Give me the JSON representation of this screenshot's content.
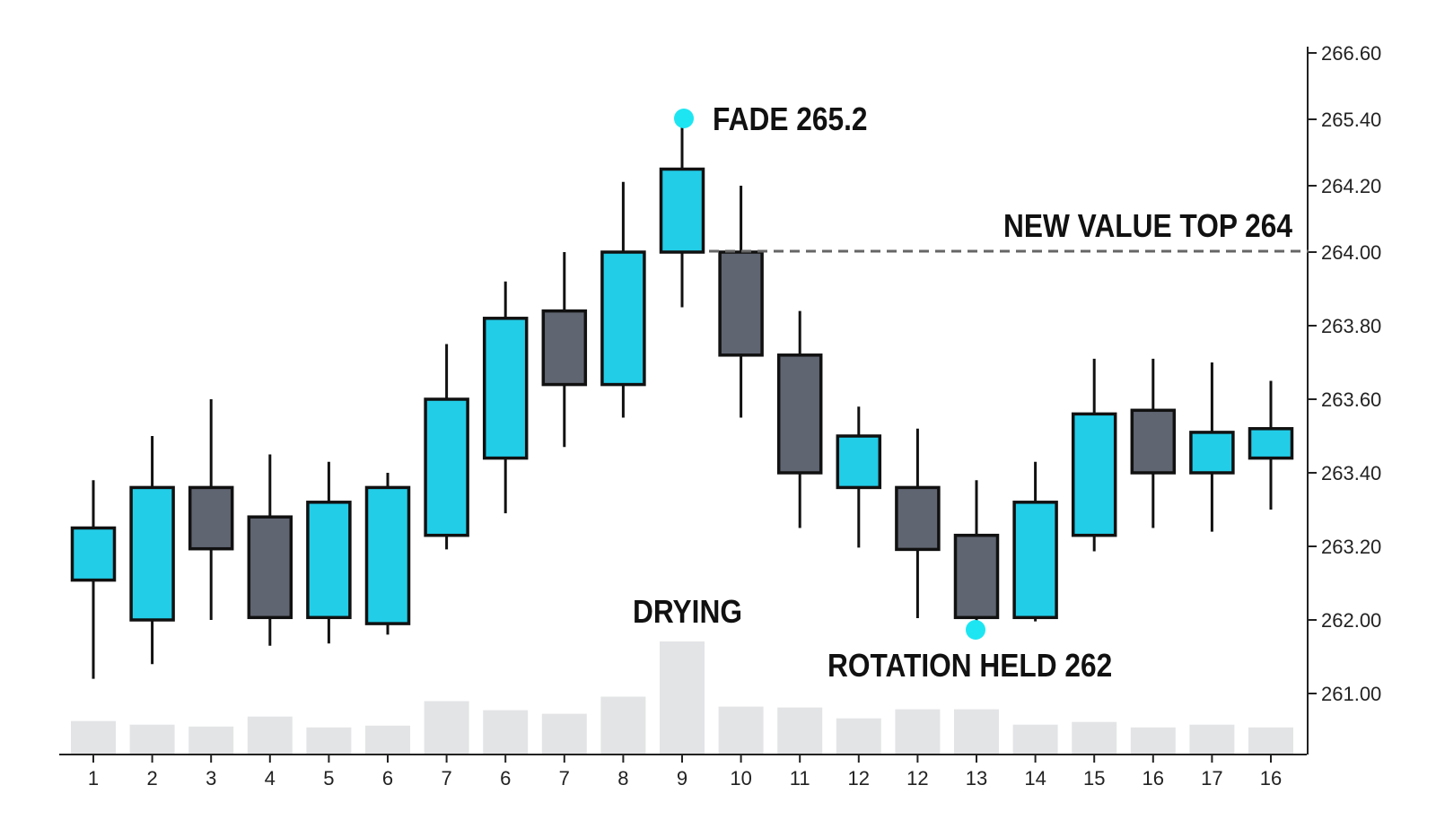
{
  "chart_data": {
    "type": "candlestick",
    "categories": [
      "1",
      "2",
      "3",
      "4",
      "5",
      "6",
      "7",
      "6",
      "7",
      "8",
      "9",
      "10",
      "11",
      "12",
      "12",
      "13",
      "14",
      "15",
      "16",
      "17",
      "16"
    ],
    "candles": [
      {
        "open": 262.65,
        "high": 263.38,
        "low": 261.2,
        "close": 263.25
      },
      {
        "open": 262.0,
        "high": 263.5,
        "low": 261.4,
        "close": 263.36
      },
      {
        "open": 263.36,
        "high": 263.6,
        "low": 262.0,
        "close": 263.16
      },
      {
        "open": 263.28,
        "high": 263.45,
        "low": 261.65,
        "close": 262.04
      },
      {
        "open": 262.04,
        "high": 263.43,
        "low": 261.68,
        "close": 263.32
      },
      {
        "open": 261.95,
        "high": 263.4,
        "low": 261.8,
        "close": 263.36
      },
      {
        "open": 263.23,
        "high": 263.75,
        "low": 263.15,
        "close": 263.6
      },
      {
        "open": 263.44,
        "high": 263.92,
        "low": 263.29,
        "close": 263.82
      },
      {
        "open": 263.84,
        "high": 264.0,
        "low": 263.47,
        "close": 263.64
      },
      {
        "open": 263.64,
        "high": 264.27,
        "low": 263.55,
        "close": 264.0
      },
      {
        "open": 264.0,
        "high": 265.45,
        "low": 263.85,
        "close": 264.5
      },
      {
        "open": 264.0,
        "high": 264.2,
        "low": 263.55,
        "close": 263.72
      },
      {
        "open": 263.72,
        "high": 263.84,
        "low": 263.25,
        "close": 263.4
      },
      {
        "open": 263.36,
        "high": 263.58,
        "low": 263.18,
        "close": 263.5
      },
      {
        "open": 263.36,
        "high": 263.52,
        "low": 262.03,
        "close": 263.15
      },
      {
        "open": 263.23,
        "high": 263.38,
        "low": 261.98,
        "close": 262.04
      },
      {
        "open": 262.04,
        "high": 263.43,
        "low": 261.98,
        "close": 263.32
      },
      {
        "open": 263.23,
        "high": 263.71,
        "low": 263.12,
        "close": 263.56
      },
      {
        "open": 263.57,
        "high": 263.71,
        "low": 263.25,
        "close": 263.4
      },
      {
        "open": 263.4,
        "high": 263.7,
        "low": 263.24,
        "close": 263.51
      },
      {
        "open": 263.44,
        "high": 263.65,
        "low": 263.3,
        "close": 263.52
      }
    ],
    "volume": [
      3.6,
      3.2,
      3.0,
      4.1,
      2.9,
      3.1,
      5.8,
      4.8,
      4.4,
      6.3,
      12.4,
      5.2,
      5.1,
      3.9,
      4.9,
      4.9,
      3.2,
      3.5,
      2.9,
      3.2,
      2.9
    ],
    "y_ticks": [
      "261.00",
      "262.00",
      "263.20",
      "263.40",
      "263.60",
      "263.80",
      "264.00",
      "264.20",
      "265.40",
      "266.60"
    ],
    "annotations": {
      "fade": "FADE 265.2",
      "new_value_top": "NEW VALUE TOP 264",
      "drying": "DRYING",
      "rotation_held": "ROTATION HELD 262"
    },
    "colors": {
      "bull": "#22cde8",
      "bear": "#5f6571",
      "outline": "#111111",
      "volume": "#e3e4e6",
      "marker": "#1de6f2",
      "dashed": "#666666"
    },
    "axis_side": "right",
    "grid": false
  }
}
